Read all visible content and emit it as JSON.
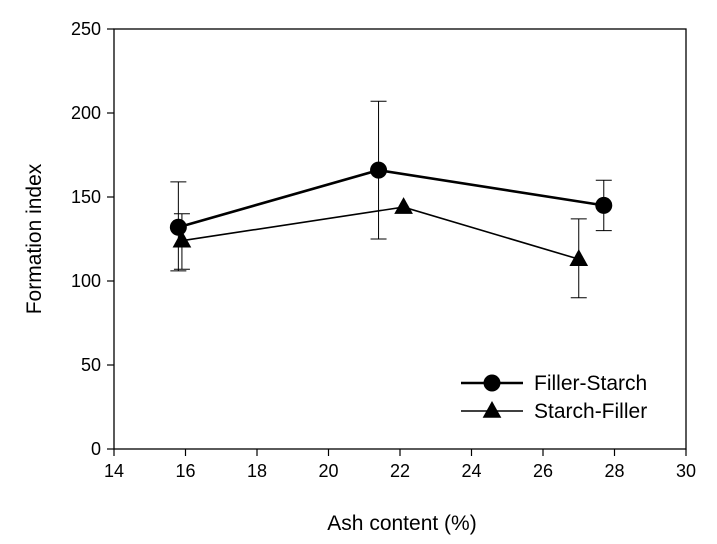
{
  "chart_data": {
    "type": "line",
    "xlabel": "Ash content (%)",
    "ylabel": "Formation index",
    "xlim": [
      14,
      30
    ],
    "ylim": [
      0,
      250
    ],
    "xticks": [
      14,
      16,
      18,
      20,
      22,
      24,
      26,
      28,
      30
    ],
    "yticks": [
      0,
      50,
      100,
      150,
      200,
      250
    ],
    "grid": false,
    "legend_position": "bottom-right",
    "series": [
      {
        "name": "Filler-Starch",
        "marker": "circle",
        "color": "#000000",
        "line_width": "thick",
        "points": [
          {
            "x": 15.8,
            "y": 132,
            "err_low": 106,
            "err_high": 159
          },
          {
            "x": 21.4,
            "y": 166,
            "err_low": 125,
            "err_high": 207
          },
          {
            "x": 27.7,
            "y": 145,
            "err_low": 130,
            "err_high": 160
          }
        ]
      },
      {
        "name": "Starch-Filler",
        "marker": "triangle",
        "color": "#000000",
        "line_width": "thin",
        "points": [
          {
            "x": 15.9,
            "y": 124,
            "err_low": 107,
            "err_high": 140
          },
          {
            "x": 22.1,
            "y": 144,
            "err_low": null,
            "err_high": null
          },
          {
            "x": 27.0,
            "y": 113,
            "err_low": 90,
            "err_high": 137
          }
        ]
      }
    ]
  }
}
